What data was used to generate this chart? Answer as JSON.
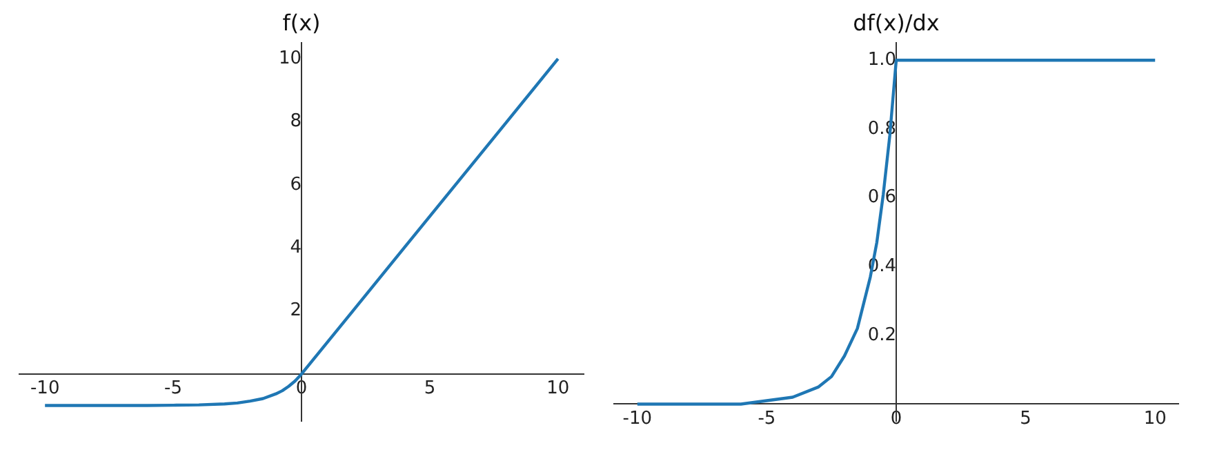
{
  "chart_data": [
    {
      "type": "line",
      "title": "f(x)",
      "x": [
        -10,
        -8,
        -6,
        -5,
        -4,
        -3,
        -2.5,
        -2,
        -1.5,
        -1,
        -0.75,
        -0.5,
        -0.25,
        0,
        2,
        4,
        6,
        8,
        10
      ],
      "series": [
        {
          "color": "#1f77b4",
          "values": [
            -1.0,
            -1.0,
            -1.0,
            -0.99,
            -0.98,
            -0.95,
            -0.92,
            -0.86,
            -0.78,
            -0.63,
            -0.53,
            -0.39,
            -0.22,
            0,
            2,
            4,
            6,
            8,
            10
          ]
        }
      ],
      "xlim": [
        -11,
        11
      ],
      "ylim": [
        -1.5,
        10.5
      ],
      "xticks": [
        -10,
        -5,
        0,
        5,
        10
      ],
      "yticks": [
        2,
        4,
        6,
        8,
        10
      ],
      "grid": false,
      "legend": false,
      "marker": "none",
      "line_style": "solid"
    },
    {
      "type": "line",
      "title": "df(x)/dx",
      "x": [
        -10,
        -8,
        -6,
        -5,
        -4,
        -3,
        -2.5,
        -2,
        -1.5,
        -1,
        -0.75,
        -0.5,
        -0.25,
        0,
        10
      ],
      "series": [
        {
          "color": "#1f77b4",
          "values": [
            0.0,
            0.0,
            0.0,
            0.01,
            0.02,
            0.05,
            0.08,
            0.14,
            0.22,
            0.37,
            0.47,
            0.61,
            0.78,
            1.0,
            1.0
          ]
        }
      ],
      "xlim": [
        -10.9,
        10.9
      ],
      "ylim": [
        -0.05,
        1.05
      ],
      "xticks": [
        -10,
        -5,
        0,
        5,
        10
      ],
      "yticks": [
        {
          "value": 0.2,
          "label": "0.2"
        },
        {
          "value": 0.4,
          "label": "0.4"
        },
        {
          "value": 0.6,
          "label": "0.6"
        },
        {
          "value": 0.8,
          "label": "0.8"
        },
        {
          "value": 1,
          "label": "1.0"
        }
      ],
      "grid": false,
      "legend": false,
      "marker": "none",
      "line_style": "solid"
    }
  ]
}
